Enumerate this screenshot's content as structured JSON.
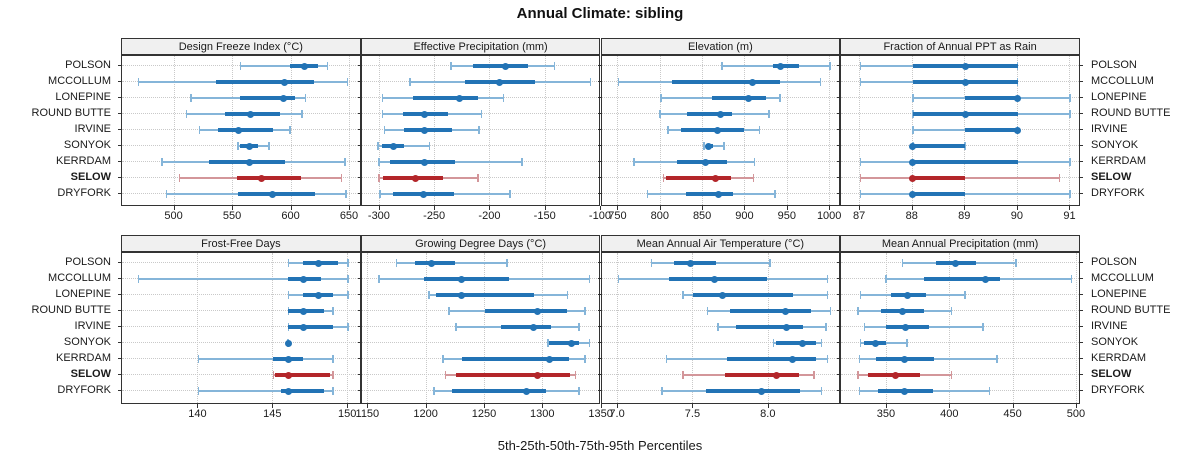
{
  "title": "Annual Climate: sibling",
  "caption": "5th-25th-50th-75th-95th Percentiles",
  "stations": [
    "POLSON",
    "MCCOLLUM",
    "LONEPINE",
    "ROUND BUTTE",
    "IRVINE",
    "SONYOK",
    "KERRDAM",
    "SELOW",
    "DRYFORK"
  ],
  "highlighted_station": "SELOW",
  "colors": {
    "blue": "#2273b5",
    "blue_light": "#85b5d9",
    "red": "#b3262a",
    "red_light": "#d3969a",
    "grid": "#c9c9c9",
    "border": "#333333",
    "header_bg": "#f0f0f0",
    "text": "#1a1a1a"
  },
  "chart_data": {
    "type": "scatter",
    "subtype": "percentile-interval-dotplot",
    "legend_position": "none",
    "grid": "dotted",
    "percentiles": [
      "5th",
      "25th",
      "50th",
      "75th",
      "95th"
    ],
    "stations": [
      "POLSON",
      "MCCOLLUM",
      "LONEPINE",
      "ROUND BUTTE",
      "IRVINE",
      "SONYOK",
      "KERRDAM",
      "SELOW",
      "DRYFORK"
    ],
    "panels": [
      {
        "title": "Design Freeze Index (°C)",
        "row": 0,
        "col": 0,
        "axis_range": [
          455,
          660
        ],
        "ticks": [
          {
            "v": 500,
            "label": "500"
          },
          {
            "v": 550,
            "label": "550"
          },
          {
            "v": 600,
            "label": "600"
          },
          {
            "v": 650,
            "label": "650"
          }
        ],
        "series": [
          {
            "name": "POLSON",
            "values": [
              556,
              599,
              611,
              623,
              631
            ]
          },
          {
            "name": "MCCOLLUM",
            "values": [
              469,
              535,
              594,
              619,
              648
            ]
          },
          {
            "name": "LONEPINE",
            "values": [
              514,
              556,
              593,
              603,
              612
            ]
          },
          {
            "name": "ROUND BUTTE",
            "values": [
              510,
              543,
              565,
              590,
              609
            ]
          },
          {
            "name": "IRVINE",
            "values": [
              521,
              537,
              555,
              584,
              599
            ]
          },
          {
            "name": "SONYOK",
            "values": [
              554,
              556,
              564,
              571,
              581
            ]
          },
          {
            "name": "KERRDAM",
            "values": [
              489,
              529,
              564,
              594,
              646
            ]
          },
          {
            "name": "SELOW",
            "values": [
              504,
              553,
              574,
              608,
              643
            ]
          },
          {
            "name": "DRYFORK",
            "values": [
              493,
              554,
              584,
              620,
              647
            ]
          }
        ]
      },
      {
        "title": "Effective Precipitation (mm)",
        "row": 0,
        "col": 1,
        "axis_range": [
          -316.5,
          -99.5
        ],
        "ticks": [
          {
            "v": -300,
            "label": "-300"
          },
          {
            "v": -250,
            "label": "-250"
          },
          {
            "v": -200,
            "label": "-200"
          },
          {
            "v": -150,
            "label": "-150"
          },
          {
            "v": -100,
            "label": "-100"
          }
        ],
        "series": [
          {
            "name": "POLSON",
            "values": [
              -236,
              -216,
              -186,
              -166,
              -142
            ]
          },
          {
            "name": "MCCOLLUM",
            "values": [
              -273,
              -223,
              -192,
              -160,
              -109
            ]
          },
          {
            "name": "LONEPINE",
            "values": [
              -298,
              -270,
              -228,
              -211,
              -188
            ]
          },
          {
            "name": "ROUND BUTTE",
            "values": [
              -298,
              -279,
              -260,
              -238,
              -208
            ]
          },
          {
            "name": "IRVINE",
            "values": [
              -296,
              -278,
              -260,
              -235,
              -210
            ]
          },
          {
            "name": "SONYOK",
            "values": [
              -302,
              -298,
              -288,
              -278,
              -255
            ]
          },
          {
            "name": "KERRDAM",
            "values": [
              -301,
              -291,
              -260,
              -232,
              -171
            ]
          },
          {
            "name": "SELOW",
            "values": [
              -301,
              -297,
              -268,
              -243,
              -211
            ]
          },
          {
            "name": "DRYFORK",
            "values": [
              -300,
              -288,
              -261,
              -233,
              -182
            ]
          }
        ]
      },
      {
        "title": "Elevation (m)",
        "row": 0,
        "col": 2,
        "axis_range": [
          730,
          1013
        ],
        "ticks": [
          {
            "v": 750,
            "label": "750"
          },
          {
            "v": 800,
            "label": "800"
          },
          {
            "v": 850,
            "label": "850"
          },
          {
            "v": 900,
            "label": "900"
          },
          {
            "v": 950,
            "label": "950"
          },
          {
            "v": 1000,
            "label": "1000"
          }
        ],
        "series": [
          {
            "name": "POLSON",
            "values": [
              872,
              933,
              941,
              963,
              1000
            ]
          },
          {
            "name": "MCCOLLUM",
            "values": [
              750,
              813,
              908,
              941,
              989
            ]
          },
          {
            "name": "LONEPINE",
            "values": [
              800,
              860,
              904,
              924,
              941
            ]
          },
          {
            "name": "ROUND BUTTE",
            "values": [
              799,
              831,
              870,
              884,
              928
            ]
          },
          {
            "name": "IRVINE",
            "values": [
              808,
              824,
              867,
              898,
              917
            ]
          },
          {
            "name": "SONYOK",
            "values": [
              851,
              853,
              856,
              862,
              875
            ]
          },
          {
            "name": "KERRDAM",
            "values": [
              768,
              819,
              853,
              878,
              911
            ]
          },
          {
            "name": "SELOW",
            "values": [
              803,
              806,
              865,
              883,
              910
            ]
          },
          {
            "name": "DRYFORK",
            "values": [
              784,
              830,
              868,
              885,
              935
            ]
          }
        ]
      },
      {
        "title": "Fraction of Annual PPT as Rain",
        "row": 0,
        "col": 3,
        "axis_range": [
          86.64,
          91.2
        ],
        "ticks": [
          {
            "v": 87,
            "label": "87"
          },
          {
            "v": 88,
            "label": "88"
          },
          {
            "v": 89,
            "label": "89"
          },
          {
            "v": 90,
            "label": "90"
          },
          {
            "v": 91,
            "label": "91"
          }
        ],
        "series": [
          {
            "name": "POLSON",
            "values": [
              87,
              88,
              89,
              90,
              90
            ]
          },
          {
            "name": "MCCOLLUM",
            "values": [
              87,
              88,
              89,
              90,
              90
            ]
          },
          {
            "name": "LONEPINE",
            "values": [
              88,
              89,
              90,
              90,
              91
            ]
          },
          {
            "name": "ROUND BUTTE",
            "values": [
              88,
              88,
              89,
              90,
              91
            ]
          },
          {
            "name": "IRVINE",
            "values": [
              88,
              89,
              90,
              90,
              90
            ]
          },
          {
            "name": "SONYOK",
            "values": [
              88,
              88,
              88,
              89,
              89
            ]
          },
          {
            "name": "KERRDAM",
            "values": [
              87,
              88,
              88,
              90,
              91
            ]
          },
          {
            "name": "SELOW",
            "values": [
              87,
              88,
              88,
              89,
              90.8
            ]
          },
          {
            "name": "DRYFORK",
            "values": [
              87,
              88,
              88,
              89,
              91
            ]
          }
        ]
      },
      {
        "title": "Frost-Free Days",
        "row": 1,
        "col": 0,
        "axis_range": [
          134.9,
          150.9
        ],
        "ticks": [
          {
            "v": 140,
            "label": "140"
          },
          {
            "v": 145,
            "label": "145"
          },
          {
            "v": 150,
            "label": "150"
          }
        ],
        "series": [
          {
            "name": "POLSON",
            "values": [
              146,
              147,
              148,
              149.3,
              150
            ]
          },
          {
            "name": "MCCOLLUM",
            "values": [
              136,
              146,
              147,
              148.2,
              150
            ]
          },
          {
            "name": "LONEPINE",
            "values": [
              146,
              147,
              148,
              149,
              150
            ]
          },
          {
            "name": "ROUND BUTTE",
            "values": [
              146,
              146,
              147,
              148.4,
              149
            ]
          },
          {
            "name": "IRVINE",
            "values": [
              146,
              146,
              147,
              149,
              150
            ]
          },
          {
            "name": "SONYOK",
            "values": [
              146,
              146,
              146,
              146,
              146
            ]
          },
          {
            "name": "KERRDAM",
            "values": [
              140,
              145,
              146,
              147,
              149
            ]
          },
          {
            "name": "SELOW",
            "values": [
              145,
              145.1,
              146,
              148.8,
              149
            ]
          },
          {
            "name": "DRYFORK",
            "values": [
              140,
              145.5,
              146,
              148.4,
              149
            ]
          }
        ]
      },
      {
        "title": "Growing Degree Days (°C)",
        "row": 1,
        "col": 1,
        "axis_range": [
          1144.3,
          1349.9
        ],
        "ticks": [
          {
            "v": 1150,
            "label": "1150"
          },
          {
            "v": 1200,
            "label": "1200"
          },
          {
            "v": 1250,
            "label": "1250"
          },
          {
            "v": 1300,
            "label": "1300"
          },
          {
            "v": 1350,
            "label": "1350"
          }
        ],
        "series": [
          {
            "name": "POLSON",
            "values": [
              1174,
              1190,
              1204,
              1224,
              1269
            ]
          },
          {
            "name": "MCCOLLUM",
            "values": [
              1159,
              1198,
              1230,
              1271,
              1340
            ]
          },
          {
            "name": "LONEPINE",
            "values": [
              1202,
              1208,
              1230,
              1292,
              1321
            ]
          },
          {
            "name": "ROUND BUTTE",
            "values": [
              1219,
              1250,
              1295,
              1320,
              1336
            ]
          },
          {
            "name": "IRVINE",
            "values": [
              1225,
              1264,
              1292,
              1307,
              1331
            ]
          },
          {
            "name": "SONYOK",
            "values": [
              1304,
              1305,
              1324,
              1331,
              1340
            ]
          },
          {
            "name": "KERRDAM",
            "values": [
              1214,
              1230,
              1305,
              1322,
              1336
            ]
          },
          {
            "name": "SELOW",
            "values": [
              1216,
              1225,
              1295,
              1323,
              1328
            ]
          },
          {
            "name": "DRYFORK",
            "values": [
              1206,
              1222,
              1286,
              1302,
              1331
            ]
          }
        ]
      },
      {
        "title": "Mean Annual Air Temperature (°C)",
        "row": 1,
        "col": 2,
        "axis_range": [
          6.89,
          8.48
        ],
        "ticks": [
          {
            "v": 7.0,
            "label": "7.0"
          },
          {
            "v": 7.5,
            "label": "7.5"
          },
          {
            "v": 8.0,
            "label": "8.0"
          }
        ],
        "series": [
          {
            "name": "POLSON",
            "values": [
              7.22,
              7.37,
              7.48,
              7.65,
              8.01
            ]
          },
          {
            "name": "MCCOLLUM",
            "values": [
              7.0,
              7.34,
              7.64,
              7.99,
              8.39
            ]
          },
          {
            "name": "LONEPINE",
            "values": [
              7.43,
              7.5,
              7.69,
              8.16,
              8.39
            ]
          },
          {
            "name": "ROUND BUTTE",
            "values": [
              7.59,
              7.74,
              8.11,
              8.28,
              8.41
            ]
          },
          {
            "name": "IRVINE",
            "values": [
              7.66,
              7.78,
              8.12,
              8.23,
              8.38
            ]
          },
          {
            "name": "SONYOK",
            "values": [
              8.03,
              8.05,
              8.22,
              8.31,
              8.35
            ]
          },
          {
            "name": "KERRDAM",
            "values": [
              7.32,
              7.72,
              8.16,
              8.31,
              8.39
            ]
          },
          {
            "name": "SELOW",
            "values": [
              7.43,
              7.71,
              8.05,
              8.2,
              8.3
            ]
          },
          {
            "name": "DRYFORK",
            "values": [
              7.29,
              7.58,
              7.95,
              8.21,
              8.35
            ]
          }
        ]
      },
      {
        "title": "Mean Annual Precipitation (mm)",
        "row": 1,
        "col": 3,
        "axis_range": [
          313.9,
          503.2
        ],
        "ticks": [
          {
            "v": 350,
            "label": "350"
          },
          {
            "v": 400,
            "label": "400"
          },
          {
            "v": 450,
            "label": "450"
          },
          {
            "v": 500,
            "label": "500"
          }
        ],
        "series": [
          {
            "name": "POLSON",
            "values": [
              362,
              389,
              404,
              420,
              452
            ]
          },
          {
            "name": "MCCOLLUM",
            "values": [
              349,
              379,
              428,
              439,
              496
            ]
          },
          {
            "name": "LONEPINE",
            "values": [
              329,
              353,
              366,
              381,
              412
            ]
          },
          {
            "name": "ROUND BUTTE",
            "values": [
              327,
              345,
              362,
              379,
              401
            ]
          },
          {
            "name": "IRVINE",
            "values": [
              332,
              349,
              365,
              383,
              426
            ]
          },
          {
            "name": "SONYOK",
            "values": [
              329,
              332,
              341,
              349,
              366
            ]
          },
          {
            "name": "KERRDAM",
            "values": [
              328,
              341,
              364,
              387,
              437
            ]
          },
          {
            "name": "SELOW",
            "values": [
              327,
              335,
              357,
              376,
              401
            ]
          },
          {
            "name": "DRYFORK",
            "values": [
              328,
              343,
              364,
              386,
              431
            ]
          }
        ]
      }
    ]
  }
}
